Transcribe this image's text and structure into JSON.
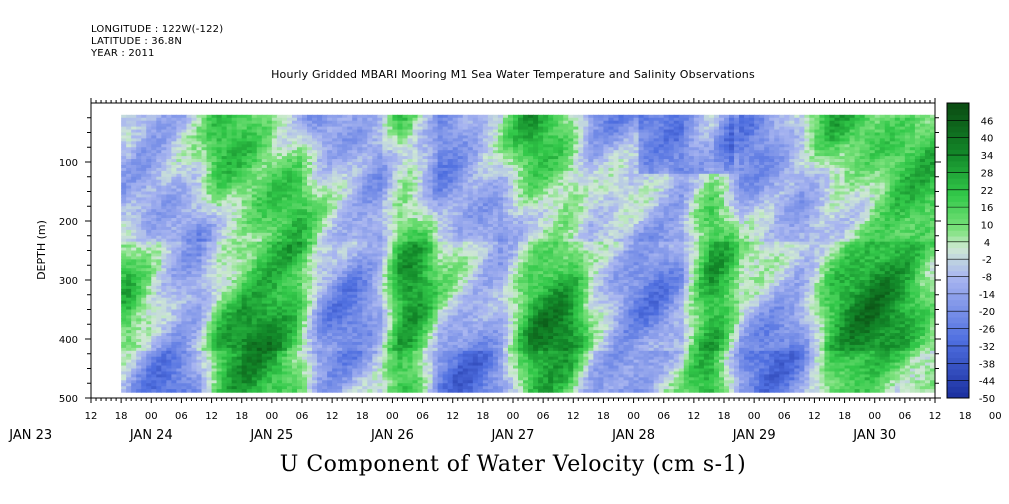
{
  "header": {
    "longitude": "LONGITUDE : 122W(-122)",
    "latitude": "LATITUDE : 36.8N",
    "year": "YEAR : 2011"
  },
  "chart_data": {
    "type": "heatmap",
    "title": "Hourly Gridded MBARI Mooring M1 Sea Water Temperature and Salinity Observations",
    "xlabel": "",
    "ylabel": "DEPTH (m)",
    "bottom_title": "U Component of Water Velocity (cm s-1)",
    "x_hour_ticks": [
      "12",
      "18",
      "00",
      "06",
      "12",
      "18",
      "00",
      "06",
      "12",
      "18",
      "00",
      "06",
      "12",
      "18",
      "00",
      "06",
      "12",
      "18",
      "00",
      "06",
      "12",
      "18",
      "00",
      "06",
      "12",
      "18",
      "00",
      "06",
      "12",
      "18",
      "00",
      "06",
      "12",
      "18",
      "00",
      "06",
      "12"
    ],
    "x_day_labels": [
      "JAN 23",
      "JAN 24",
      "JAN 25",
      "JAN 26",
      "JAN 27",
      "JAN 28",
      "JAN 29",
      "JAN 30"
    ],
    "x_start_hour_of_jan23": 12,
    "x_end_hour_of_jan23": 180,
    "y_ticks": [
      100,
      200,
      300,
      400,
      500
    ],
    "ylim_top": 0,
    "ylim_bottom": 500,
    "data_depth_range": [
      20,
      490
    ],
    "data_time_range_hours": [
      18,
      180
    ],
    "colorbar_levels": [
      46,
      40,
      34,
      28,
      22,
      16,
      10,
      4,
      -2,
      -8,
      -14,
      -20,
      -26,
      -32,
      -38,
      -44,
      -50
    ],
    "colorbar_min": -50,
    "colorbar_max": 52,
    "colors": {
      "strong_neg": "#1a2f9e",
      "mid_neg": "#4f6fe0",
      "weak_neg": "#a9b6f0",
      "near_zero": "#cfe9d3",
      "weak_pos": "#7ee27e",
      "mid_pos": "#33c94a",
      "strong_pos": "#138a2a",
      "max_pos": "#0a4a12"
    },
    "field_description_values": {
      "blue_dominant_hours": [
        [
          22,
          34
        ],
        [
          56,
          70
        ],
        [
          78,
          96
        ],
        [
          110,
          132
        ],
        [
          138,
          156
        ]
      ],
      "green_dominant_hours": [
        [
          36,
          54
        ],
        [
          72,
          78
        ],
        [
          96,
          108
        ],
        [
          132,
          138
        ],
        [
          156,
          180
        ]
      ]
    }
  }
}
